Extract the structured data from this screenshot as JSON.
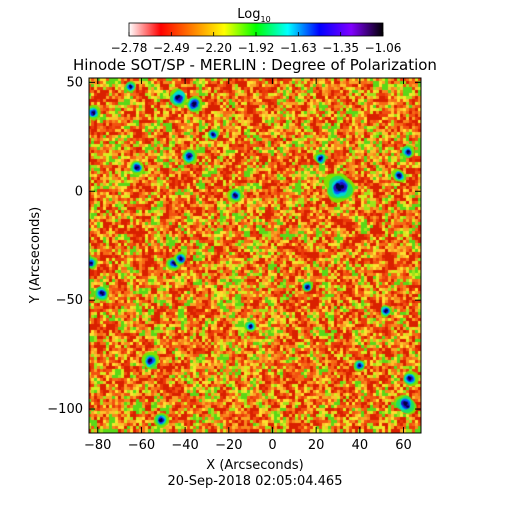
{
  "chart_data": {
    "type": "heatmap",
    "title": "Hinode SOT/SP - MERLIN : Degree of Polarization",
    "xlabel": "X (Arcseconds)",
    "ylabel": "Y (Arcseconds)",
    "timestamp": "20-Sep-2018 02:05:04.465",
    "colorbar": {
      "label_base": "Log",
      "label_sub": "10",
      "ticks": [
        "−2.78",
        "−2.49",
        "−2.20",
        "−1.92",
        "−1.63",
        "−1.35",
        "−1.06"
      ],
      "range": [
        -2.78,
        -1.06
      ],
      "colormap": [
        "#ffffff",
        "#ff0000",
        "#ff8000",
        "#ffff00",
        "#00ff00",
        "#00ffff",
        "#0000ff",
        "#8000ff",
        "#000000"
      ]
    },
    "x_ticks": [
      "−80",
      "−60",
      "−40",
      "−20",
      "0",
      "20",
      "40",
      "60"
    ],
    "y_ticks": [
      "50",
      "0",
      "−50",
      "−100"
    ],
    "xlim": [
      -84,
      68
    ],
    "ylim": [
      -111,
      52
    ],
    "field": {
      "background_value": -2.55,
      "dominant_colors": [
        "#ee3a10",
        "#f47018",
        "#f8a020",
        "#ffd700",
        "#7ee000"
      ],
      "blobs": [
        {
          "x": 31,
          "y": 2,
          "r": 3.2
        },
        {
          "x": -43,
          "y": 43,
          "r": 2.0
        },
        {
          "x": -36,
          "y": 40,
          "r": 1.8
        },
        {
          "x": -38,
          "y": 16,
          "r": 1.6
        },
        {
          "x": -82,
          "y": 36,
          "r": 1.4
        },
        {
          "x": -62,
          "y": 11,
          "r": 1.4
        },
        {
          "x": -17,
          "y": -2,
          "r": 1.5
        },
        {
          "x": -45,
          "y": -33,
          "r": 1.5
        },
        {
          "x": -42,
          "y": -31,
          "r": 1.4
        },
        {
          "x": -78,
          "y": -47,
          "r": 1.6
        },
        {
          "x": -83,
          "y": -33,
          "r": 1.3
        },
        {
          "x": -56,
          "y": -78,
          "r": 1.7
        },
        {
          "x": -51,
          "y": -105,
          "r": 1.5
        },
        {
          "x": 61,
          "y": -98,
          "r": 2.2
        },
        {
          "x": 63,
          "y": -86,
          "r": 1.6
        },
        {
          "x": 58,
          "y": 7,
          "r": 1.4
        },
        {
          "x": 62,
          "y": 18,
          "r": 1.4
        },
        {
          "x": 22,
          "y": 15,
          "r": 1.3
        },
        {
          "x": 16,
          "y": -44,
          "r": 1.2
        },
        {
          "x": -27,
          "y": 26,
          "r": 1.2
        },
        {
          "x": 52,
          "y": -55,
          "r": 1.3
        },
        {
          "x": -10,
          "y": -62,
          "r": 1.2
        },
        {
          "x": 40,
          "y": -80,
          "r": 1.2
        },
        {
          "x": -65,
          "y": 48,
          "r": 1.2
        }
      ]
    }
  }
}
